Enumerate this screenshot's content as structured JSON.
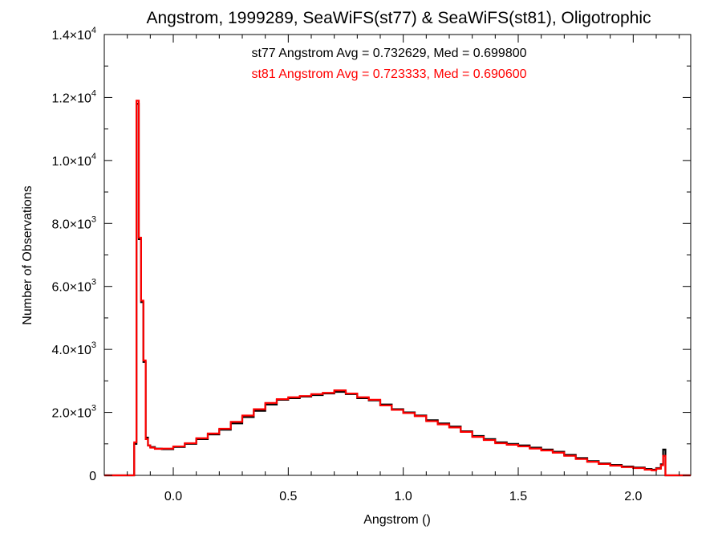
{
  "chart_data": {
    "type": "line",
    "step": true,
    "title": "Angstrom, 1999289, SeaWiFS(st77) & SeaWiFS(st81), Oligotrophic",
    "xlabel": "Angstrom ()",
    "ylabel": "Number of Observations",
    "xlim": [
      -0.3,
      2.25
    ],
    "ylim": [
      0,
      14000
    ],
    "x_ticks": [
      0.0,
      0.5,
      1.0,
      1.5,
      2.0
    ],
    "x_tick_labels": [
      "0.0",
      "0.5",
      "1.0",
      "1.5",
      "2.0"
    ],
    "y_ticks": [
      0,
      2000,
      4000,
      6000,
      8000,
      10000,
      12000,
      14000
    ],
    "y_tick_labels": [
      {
        "mantissa": "0",
        "exp": ""
      },
      {
        "mantissa": "2.0×10",
        "exp": "3"
      },
      {
        "mantissa": "4.0×10",
        "exp": "3"
      },
      {
        "mantissa": "6.0×10",
        "exp": "3"
      },
      {
        "mantissa": "8.0×10",
        "exp": "3"
      },
      {
        "mantissa": "1.0×10",
        "exp": "4"
      },
      {
        "mantissa": "1.2×10",
        "exp": "4"
      },
      {
        "mantissa": "1.4×10",
        "exp": "4"
      }
    ],
    "grid": false,
    "annotations": [
      {
        "text": "st77 Angstrom Avg = 0.732629, Med = 0.699800",
        "color": "#000000"
      },
      {
        "text": "st81 Angstrom Avg = 0.723333, Med = 0.690600",
        "color": "#ff0000"
      }
    ],
    "series": [
      {
        "color": "#000000",
        "x": [
          -0.3,
          -0.18,
          -0.17,
          -0.16,
          -0.15,
          -0.14,
          -0.13,
          -0.12,
          -0.11,
          -0.1,
          -0.08,
          -0.05,
          0.0,
          0.05,
          0.1,
          0.15,
          0.2,
          0.25,
          0.3,
          0.35,
          0.4,
          0.45,
          0.5,
          0.55,
          0.6,
          0.65,
          0.7,
          0.75,
          0.8,
          0.85,
          0.9,
          0.95,
          1.0,
          1.05,
          1.1,
          1.15,
          1.2,
          1.25,
          1.3,
          1.35,
          1.4,
          1.45,
          1.5,
          1.55,
          1.6,
          1.65,
          1.7,
          1.75,
          1.8,
          1.85,
          1.9,
          1.95,
          2.0,
          2.05,
          2.08,
          2.1,
          2.12,
          2.13,
          2.14,
          2.25
        ],
        "y": [
          0,
          0,
          1000,
          11800,
          7500,
          5500,
          3600,
          1200,
          950,
          900,
          850,
          830,
          900,
          1000,
          1150,
          1300,
          1450,
          1650,
          1850,
          2050,
          2250,
          2400,
          2450,
          2500,
          2550,
          2600,
          2650,
          2580,
          2450,
          2380,
          2250,
          2100,
          2000,
          1900,
          1750,
          1650,
          1550,
          1400,
          1250,
          1150,
          1050,
          1000,
          950,
          880,
          820,
          750,
          650,
          550,
          450,
          380,
          330,
          280,
          250,
          200,
          180,
          230,
          350,
          820,
          0,
          0
        ]
      },
      {
        "color": "#ff0000",
        "x": [
          -0.3,
          -0.18,
          -0.17,
          -0.16,
          -0.15,
          -0.14,
          -0.13,
          -0.12,
          -0.11,
          -0.1,
          -0.08,
          -0.05,
          0.0,
          0.05,
          0.1,
          0.15,
          0.2,
          0.25,
          0.3,
          0.35,
          0.4,
          0.45,
          0.5,
          0.55,
          0.6,
          0.65,
          0.7,
          0.75,
          0.8,
          0.85,
          0.9,
          0.95,
          1.0,
          1.05,
          1.1,
          1.15,
          1.2,
          1.25,
          1.3,
          1.35,
          1.4,
          1.45,
          1.5,
          1.55,
          1.6,
          1.65,
          1.7,
          1.75,
          1.8,
          1.85,
          1.9,
          1.95,
          2.0,
          2.05,
          2.08,
          2.1,
          2.12,
          2.13,
          2.14,
          2.25
        ],
        "y": [
          0,
          0,
          1050,
          11900,
          7550,
          5550,
          3650,
          1150,
          950,
          880,
          840,
          850,
          920,
          1020,
          1180,
          1330,
          1480,
          1700,
          1900,
          2100,
          2300,
          2420,
          2480,
          2520,
          2580,
          2620,
          2700,
          2600,
          2480,
          2400,
          2220,
          2080,
          1980,
          1880,
          1720,
          1620,
          1520,
          1380,
          1220,
          1120,
          1020,
          970,
          920,
          850,
          790,
          720,
          620,
          520,
          430,
          360,
          310,
          260,
          230,
          180,
          160,
          210,
          320,
          620,
          0,
          0
        ]
      }
    ]
  }
}
